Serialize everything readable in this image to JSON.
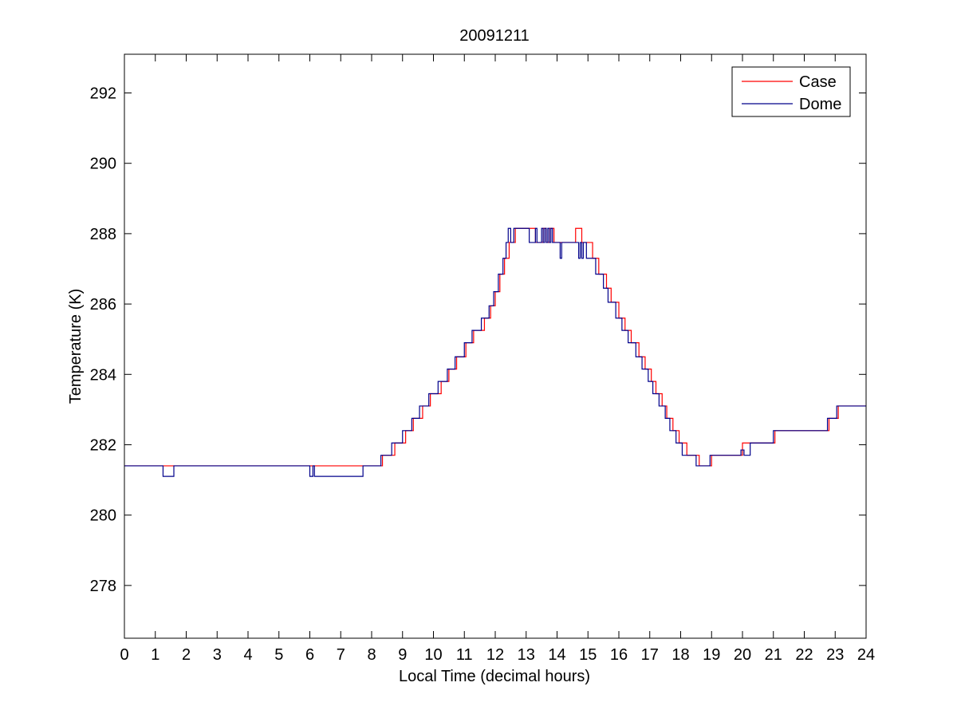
{
  "chart_data": {
    "type": "line",
    "title": "20091211",
    "xlabel": "Local Time (decimal hours)",
    "ylabel": "Temperature (K)",
    "xlim": [
      0,
      24
    ],
    "ylim": [
      276.5,
      293.1
    ],
    "xticks": [
      0,
      1,
      2,
      3,
      4,
      5,
      6,
      7,
      8,
      9,
      10,
      11,
      12,
      13,
      14,
      15,
      16,
      17,
      18,
      19,
      20,
      21,
      22,
      23,
      24
    ],
    "yticks": [
      278,
      280,
      282,
      284,
      286,
      288,
      290,
      292
    ],
    "grid": false,
    "legend_position": "top-right",
    "series": [
      {
        "name": "Case",
        "color": "#ff0000",
        "style": "step",
        "points": [
          [
            0,
            281.4
          ],
          [
            6.05,
            281.4
          ],
          [
            7.72,
            281.4
          ],
          [
            8.35,
            281.7
          ],
          [
            8.75,
            282.05
          ],
          [
            9.1,
            282.4
          ],
          [
            9.35,
            282.75
          ],
          [
            9.65,
            283.1
          ],
          [
            9.9,
            283.45
          ],
          [
            10.25,
            283.8
          ],
          [
            10.5,
            284.15
          ],
          [
            10.75,
            284.5
          ],
          [
            11.05,
            284.9
          ],
          [
            11.3,
            285.25
          ],
          [
            11.65,
            285.6
          ],
          [
            11.85,
            285.95
          ],
          [
            12.0,
            286.35
          ],
          [
            12.15,
            286.85
          ],
          [
            12.3,
            287.3
          ],
          [
            12.45,
            287.75
          ],
          [
            12.65,
            288.15
          ],
          [
            13.3,
            287.75
          ],
          [
            13.55,
            288.15
          ],
          [
            13.65,
            287.75
          ],
          [
            13.75,
            288.15
          ],
          [
            13.9,
            287.75
          ],
          [
            14.6,
            288.15
          ],
          [
            14.8,
            287.75
          ],
          [
            15.15,
            287.3
          ],
          [
            15.35,
            286.85
          ],
          [
            15.6,
            286.45
          ],
          [
            15.75,
            286.05
          ],
          [
            16.0,
            285.6
          ],
          [
            16.2,
            285.25
          ],
          [
            16.4,
            284.9
          ],
          [
            16.65,
            284.5
          ],
          [
            16.85,
            284.15
          ],
          [
            17.05,
            283.8
          ],
          [
            17.2,
            283.45
          ],
          [
            17.4,
            283.1
          ],
          [
            17.55,
            282.75
          ],
          [
            17.75,
            282.4
          ],
          [
            17.95,
            282.05
          ],
          [
            18.2,
            281.7
          ],
          [
            18.6,
            281.4
          ],
          [
            19.0,
            281.7
          ],
          [
            20.0,
            282.05
          ],
          [
            21.05,
            282.4
          ],
          [
            22.8,
            282.75
          ],
          [
            23.1,
            283.1
          ],
          [
            24.0,
            283.1
          ]
        ]
      },
      {
        "name": "Dome",
        "color": "#00008b",
        "style": "step",
        "points": [
          [
            0,
            281.4
          ],
          [
            1.25,
            281.1
          ],
          [
            1.6,
            281.4
          ],
          [
            6.0,
            281.1
          ],
          [
            6.1,
            281.4
          ],
          [
            6.15,
            281.1
          ],
          [
            7.72,
            281.4
          ],
          [
            8.3,
            281.7
          ],
          [
            8.65,
            282.05
          ],
          [
            9.0,
            282.4
          ],
          [
            9.3,
            282.75
          ],
          [
            9.55,
            283.1
          ],
          [
            9.85,
            283.45
          ],
          [
            10.15,
            283.8
          ],
          [
            10.45,
            284.15
          ],
          [
            10.7,
            284.5
          ],
          [
            11.0,
            284.9
          ],
          [
            11.25,
            285.25
          ],
          [
            11.55,
            285.6
          ],
          [
            11.8,
            285.95
          ],
          [
            11.95,
            286.35
          ],
          [
            12.1,
            286.85
          ],
          [
            12.25,
            287.3
          ],
          [
            12.35,
            287.75
          ],
          [
            12.42,
            288.15
          ],
          [
            12.5,
            287.75
          ],
          [
            12.6,
            288.15
          ],
          [
            13.1,
            287.75
          ],
          [
            13.3,
            288.15
          ],
          [
            13.35,
            287.75
          ],
          [
            13.5,
            288.15
          ],
          [
            13.55,
            287.75
          ],
          [
            13.6,
            288.15
          ],
          [
            13.65,
            287.75
          ],
          [
            13.7,
            288.15
          ],
          [
            13.75,
            287.75
          ],
          [
            13.8,
            288.15
          ],
          [
            13.85,
            287.75
          ],
          [
            14.1,
            287.3
          ],
          [
            14.15,
            287.75
          ],
          [
            14.7,
            287.3
          ],
          [
            14.75,
            287.75
          ],
          [
            14.8,
            287.3
          ],
          [
            14.85,
            287.75
          ],
          [
            14.95,
            287.3
          ],
          [
            15.25,
            286.85
          ],
          [
            15.5,
            286.45
          ],
          [
            15.65,
            286.05
          ],
          [
            15.9,
            285.6
          ],
          [
            16.1,
            285.25
          ],
          [
            16.3,
            284.9
          ],
          [
            16.55,
            284.5
          ],
          [
            16.75,
            284.15
          ],
          [
            16.95,
            283.8
          ],
          [
            17.1,
            283.45
          ],
          [
            17.3,
            283.1
          ],
          [
            17.5,
            282.75
          ],
          [
            17.65,
            282.4
          ],
          [
            17.85,
            282.05
          ],
          [
            18.05,
            281.7
          ],
          [
            18.5,
            281.4
          ],
          [
            18.95,
            281.7
          ],
          [
            19.95,
            281.85
          ],
          [
            20.05,
            281.7
          ],
          [
            20.25,
            282.05
          ],
          [
            21.0,
            282.4
          ],
          [
            22.75,
            282.75
          ],
          [
            23.05,
            283.1
          ],
          [
            24.0,
            283.1
          ]
        ]
      }
    ]
  }
}
